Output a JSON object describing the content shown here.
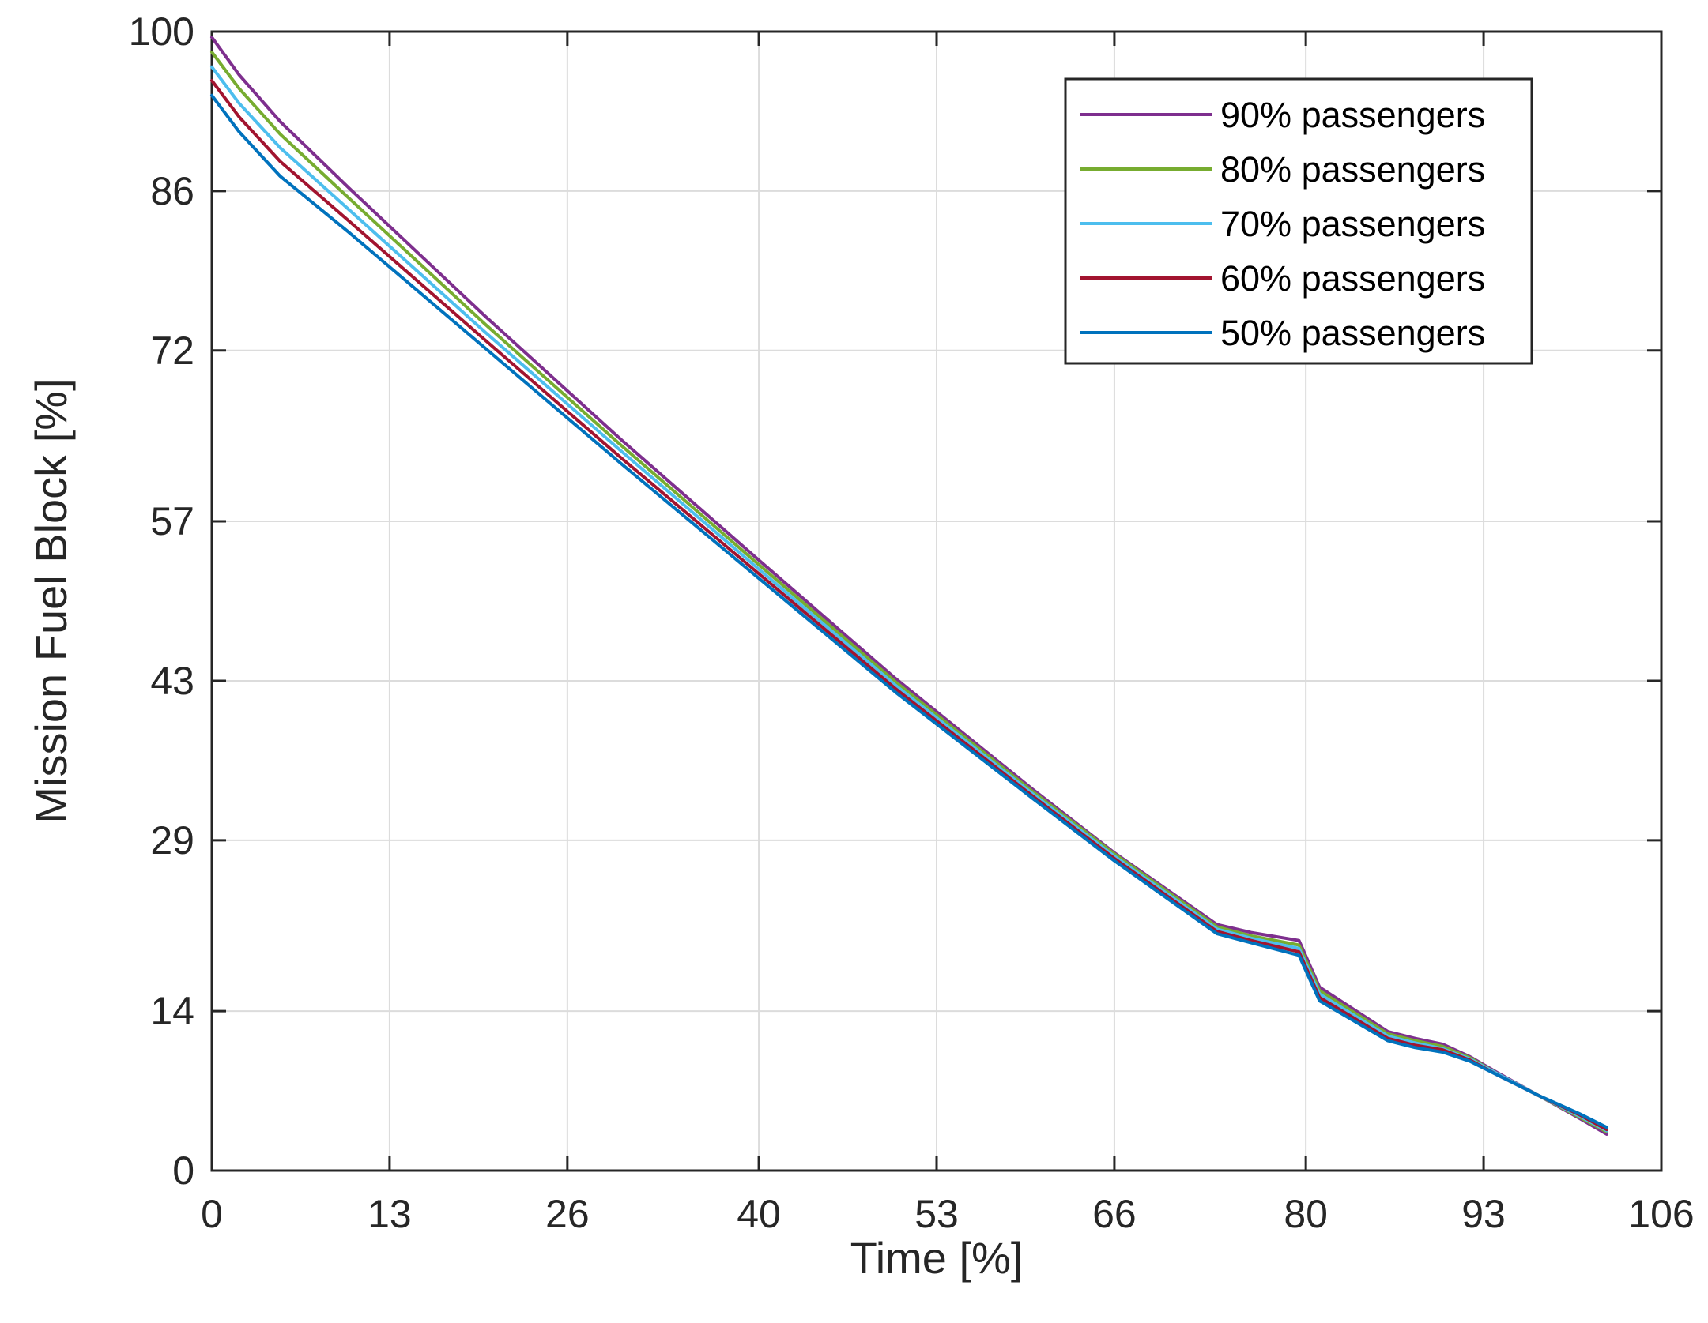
{
  "chart_data": {
    "type": "line",
    "title": "",
    "xlabel": "Time [%]",
    "ylabel": "Mission Fuel Block [%]",
    "xlim": [
      0,
      106
    ],
    "ylim": [
      0,
      100
    ],
    "xticks": [
      0,
      13,
      26,
      40,
      53,
      66,
      80,
      93,
      106
    ],
    "yticks": [
      0,
      14,
      29,
      43,
      57,
      72,
      86,
      100
    ],
    "xtick_labels": [
      "0",
      "13",
      "26",
      "40",
      "53",
      "66",
      "80",
      "93",
      "106"
    ],
    "ytick_labels": [
      "0",
      "14",
      "29",
      "43",
      "57",
      "72",
      "86",
      "100"
    ],
    "grid": true,
    "legend_position": "top-right",
    "series": [
      {
        "name": "90% passengers",
        "color": "#7E2F8E",
        "x": [
          0,
          2,
          5,
          10,
          20,
          30,
          40,
          50,
          60,
          66,
          73.5,
          76,
          79.5,
          81,
          86,
          88,
          90,
          92,
          94,
          97,
          100,
          102
        ],
        "y": [
          99.5,
          96.2,
          92.1,
          86.3,
          75.0,
          64.1,
          53.6,
          43.2,
          33.5,
          27.9,
          21.6,
          20.9,
          20.2,
          16.1,
          12.2,
          11.6,
          11.1,
          10.0,
          8.6,
          6.6,
          4.6,
          3.2
        ]
      },
      {
        "name": "80% passengers",
        "color": "#77AC30",
        "x": [
          0,
          2,
          5,
          10,
          20,
          30,
          40,
          50,
          60,
          66,
          73.5,
          76,
          79.5,
          81,
          86,
          88,
          90,
          92,
          94,
          97,
          100,
          102
        ],
        "y": [
          98.2,
          95.0,
          91.0,
          85.4,
          74.3,
          63.6,
          53.2,
          42.9,
          33.3,
          27.8,
          21.4,
          20.6,
          19.8,
          15.8,
          12.0,
          11.4,
          10.9,
          9.9,
          8.5,
          6.6,
          4.7,
          3.4
        ]
      },
      {
        "name": "70% passengers",
        "color": "#4DBEEE",
        "x": [
          0,
          2,
          5,
          10,
          20,
          30,
          40,
          50,
          60,
          66,
          73.5,
          76,
          79.5,
          81,
          86,
          88,
          90,
          92,
          94,
          97,
          100,
          102
        ],
        "y": [
          96.9,
          93.7,
          89.8,
          84.4,
          73.6,
          63.1,
          52.8,
          42.6,
          33.1,
          27.6,
          21.2,
          20.4,
          19.5,
          15.5,
          11.8,
          11.2,
          10.7,
          9.8,
          8.5,
          6.6,
          4.8,
          3.5
        ]
      },
      {
        "name": "60% passengers",
        "color": "#A2142F",
        "x": [
          0,
          2,
          5,
          10,
          20,
          30,
          40,
          50,
          60,
          66,
          73.5,
          76,
          79.5,
          81,
          86,
          88,
          90,
          92,
          94,
          97,
          100,
          102
        ],
        "y": [
          95.7,
          92.5,
          88.6,
          83.4,
          72.9,
          62.5,
          52.4,
          42.3,
          32.9,
          27.4,
          21.0,
          20.2,
          19.2,
          15.2,
          11.6,
          11.0,
          10.6,
          9.7,
          8.4,
          6.6,
          4.9,
          3.6
        ]
      },
      {
        "name": "50% passengers",
        "color": "#0072BD",
        "x": [
          0,
          2,
          5,
          10,
          20,
          30,
          40,
          50,
          60,
          66,
          73.5,
          76,
          79.5,
          81,
          86,
          88,
          90,
          92,
          94,
          97,
          100,
          102
        ],
        "y": [
          94.4,
          91.2,
          87.3,
          82.4,
          72.2,
          62.0,
          52.0,
          42.0,
          32.7,
          27.2,
          20.8,
          20.0,
          18.9,
          14.9,
          11.4,
          10.8,
          10.4,
          9.6,
          8.4,
          6.6,
          5.0,
          3.8
        ]
      }
    ]
  }
}
